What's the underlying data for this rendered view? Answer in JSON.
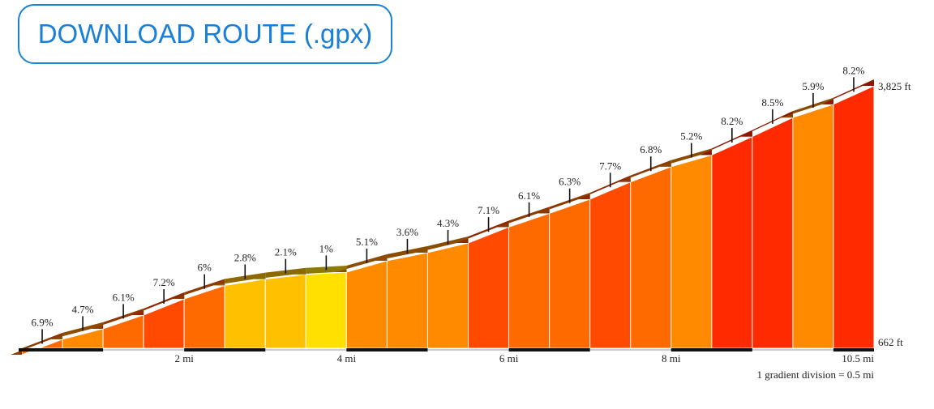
{
  "download_button": {
    "label": "DOWNLOAD ROUTE (.gpx)"
  },
  "chart_data": {
    "type": "area",
    "title": "",
    "distance_unit": "mi",
    "segment_length_mi": 0.5,
    "total_distance_mi": 10.5,
    "elevation_min_ft": 662,
    "elevation_max_ft": 3825,
    "elevation_min_label": "662 ft",
    "elevation_max_label": "3,825 ft",
    "gradients_pct": [
      6.9,
      4.7,
      6.1,
      7.2,
      6,
      2.8,
      2.1,
      1,
      5.1,
      3.6,
      4.3,
      7.1,
      6.1,
      6.3,
      7.7,
      6.8,
      5.2,
      8.2,
      8.5,
      5.9,
      8.2
    ],
    "gradient_labels": [
      "6.9%",
      "4.7%",
      "6.1%",
      "7.2%",
      "6%",
      "2.8%",
      "2.1%",
      "1%",
      "5.1%",
      "3.6%",
      "4.3%",
      "7.1%",
      "6.1%",
      "6.3%",
      "7.7%",
      "6.8%",
      "5.2%",
      "8.2%",
      "8.5%",
      "5.9%",
      "8.2%"
    ],
    "x_ticks": [
      2,
      4,
      6,
      8
    ],
    "x_tick_labels": [
      "2 mi",
      "4 mi",
      "6 mi",
      "8 mi"
    ],
    "x_end_label": "10.5 mi",
    "footnote": "1 gradient division = 0.5 mi",
    "colors": {
      "grade_lt_2": "#ffe000",
      "grade_2_3": "#ffc000",
      "grade_3_6": "#ff8a00",
      "grade_6_7": "#ff6a00",
      "grade_7_8": "#ff4a00",
      "grade_gt_8": "#ff2a00",
      "baseline": "#111111",
      "marker": "#111111"
    }
  }
}
